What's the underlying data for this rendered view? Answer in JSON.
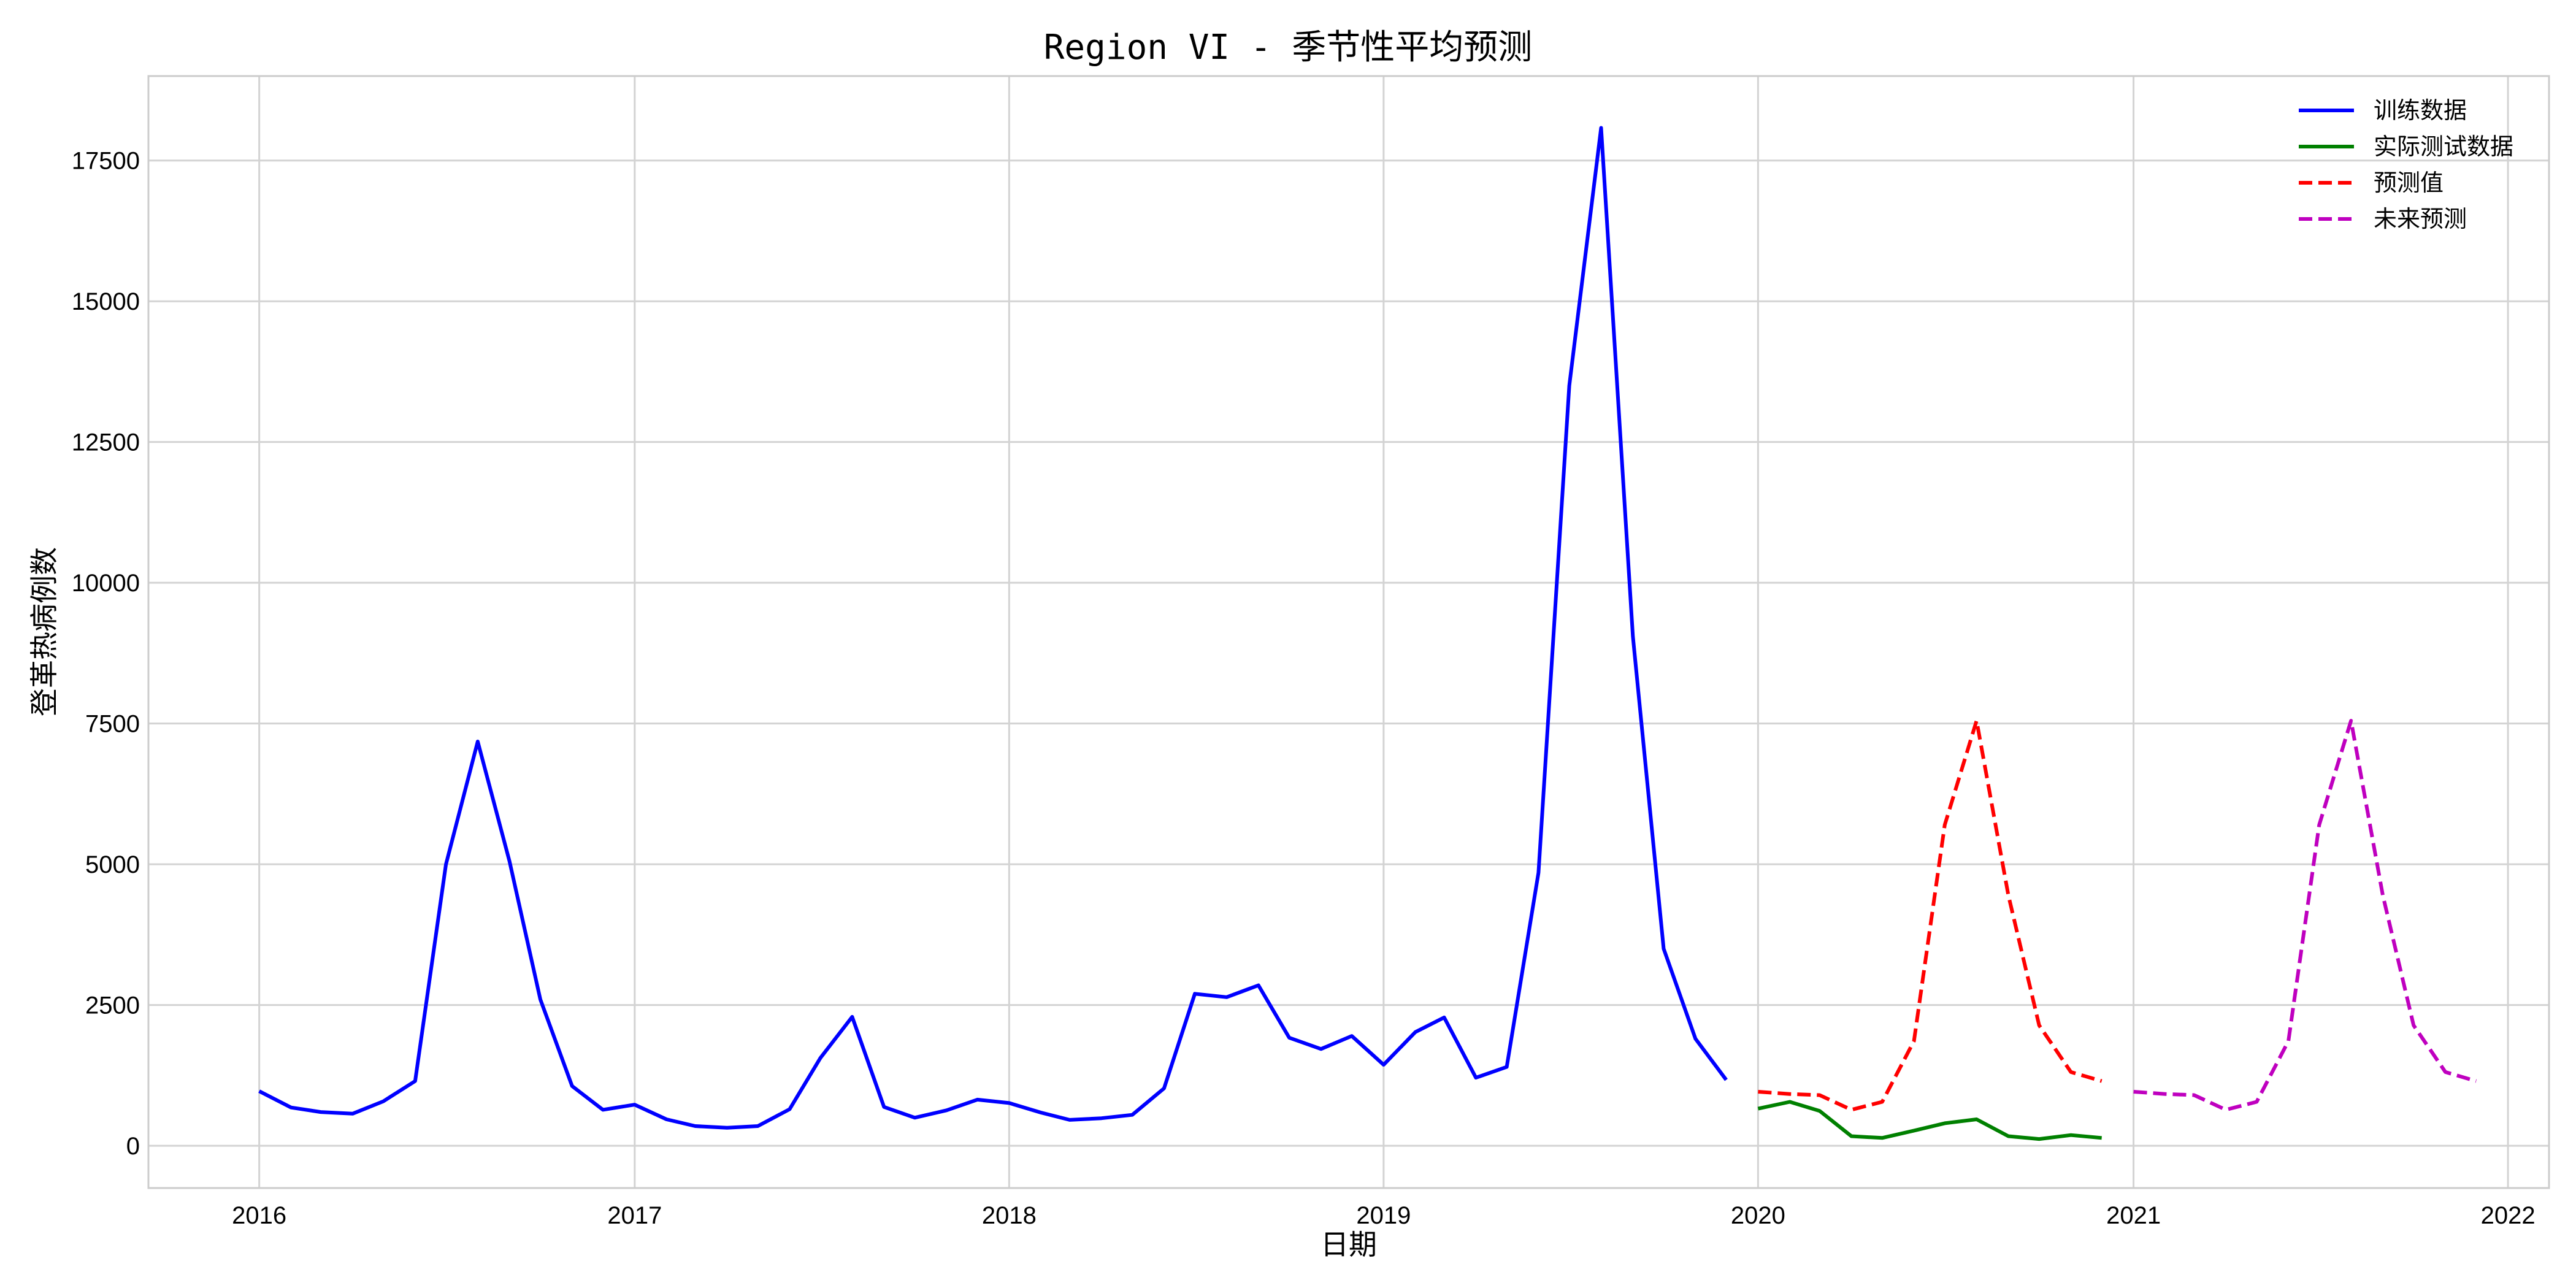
{
  "chart_data": {
    "type": "line",
    "title": "Region VI - 季节性平均预测",
    "xlabel": "日期",
    "ylabel": "登革热病例数",
    "xlim": [
      "2015-09-15",
      "2022-02-10"
    ],
    "ylim": [
      -750,
      19000
    ],
    "x_ticks": [
      "2016",
      "2017",
      "2018",
      "2019",
      "2020",
      "2021",
      "2022"
    ],
    "y_ticks": [
      0,
      2500,
      5000,
      7500,
      10000,
      12500,
      15000,
      17500
    ],
    "grid": true,
    "legend_position": "top-right",
    "series": [
      {
        "name": "训练数据",
        "color": "#0000ff",
        "dash": "solid",
        "x": [
          "2016-01-01",
          "2016-02-01",
          "2016-03-01",
          "2016-04-01",
          "2016-05-01",
          "2016-06-01",
          "2016-07-01",
          "2016-08-01",
          "2016-09-01",
          "2016-10-01",
          "2016-11-01",
          "2016-12-01",
          "2017-01-01",
          "2017-02-01",
          "2017-03-01",
          "2017-04-01",
          "2017-05-01",
          "2017-06-01",
          "2017-07-01",
          "2017-08-01",
          "2017-09-01",
          "2017-10-01",
          "2017-11-01",
          "2017-12-01",
          "2018-01-01",
          "2018-02-01",
          "2018-03-01",
          "2018-04-01",
          "2018-05-01",
          "2018-06-01",
          "2018-07-01",
          "2018-08-01",
          "2018-09-01",
          "2018-10-01",
          "2018-11-01",
          "2018-12-01",
          "2019-01-01",
          "2019-02-01",
          "2019-03-01",
          "2019-04-01",
          "2019-05-01",
          "2019-06-01",
          "2019-07-01",
          "2019-08-01",
          "2019-09-01",
          "2019-10-01",
          "2019-11-01",
          "2019-12-01"
        ],
        "values": [
          970,
          680,
          600,
          570,
          790,
          1150,
          5000,
          7180,
          5050,
          2600,
          1060,
          640,
          730,
          470,
          350,
          320,
          350,
          650,
          1560,
          2290,
          690,
          500,
          630,
          820,
          760,
          590,
          460,
          490,
          550,
          1020,
          2700,
          2640,
          2850,
          1920,
          1720,
          1950,
          1440,
          2020,
          2280,
          1210,
          1400,
          4850,
          13500,
          18080,
          9050,
          3500,
          1900,
          1170
        ]
      },
      {
        "name": "实际测试数据",
        "color": "#008000",
        "dash": "solid",
        "x": [
          "2020-01-01",
          "2020-02-01",
          "2020-03-01",
          "2020-04-01",
          "2020-05-01",
          "2020-06-01",
          "2020-07-01",
          "2020-08-01",
          "2020-09-01",
          "2020-10-01",
          "2020-11-01",
          "2020-12-01"
        ],
        "values": [
          660,
          780,
          620,
          170,
          140,
          270,
          400,
          470,
          170,
          120,
          190,
          140
        ]
      },
      {
        "name": "预测值",
        "color": "#ff0000",
        "dash": "dashed",
        "x": [
          "2020-01-01",
          "2020-02-01",
          "2020-03-01",
          "2020-04-01",
          "2020-05-01",
          "2020-06-01",
          "2020-07-01",
          "2020-08-01",
          "2020-09-01",
          "2020-10-01",
          "2020-11-01",
          "2020-12-01"
        ],
        "values": [
          960,
          920,
          900,
          640,
          780,
          1860,
          5700,
          7550,
          4450,
          2140,
          1310,
          1150
        ]
      },
      {
        "name": "未来预测",
        "color": "#bf00bf",
        "dash": "dashed",
        "x": [
          "2021-01-01",
          "2021-02-01",
          "2021-03-01",
          "2021-04-01",
          "2021-05-01",
          "2021-06-01",
          "2021-07-01",
          "2021-08-01",
          "2021-09-01",
          "2021-10-01",
          "2021-11-01",
          "2021-12-01"
        ],
        "values": [
          960,
          920,
          900,
          640,
          780,
          1860,
          5700,
          7550,
          4450,
          2140,
          1310,
          1150
        ]
      }
    ]
  }
}
